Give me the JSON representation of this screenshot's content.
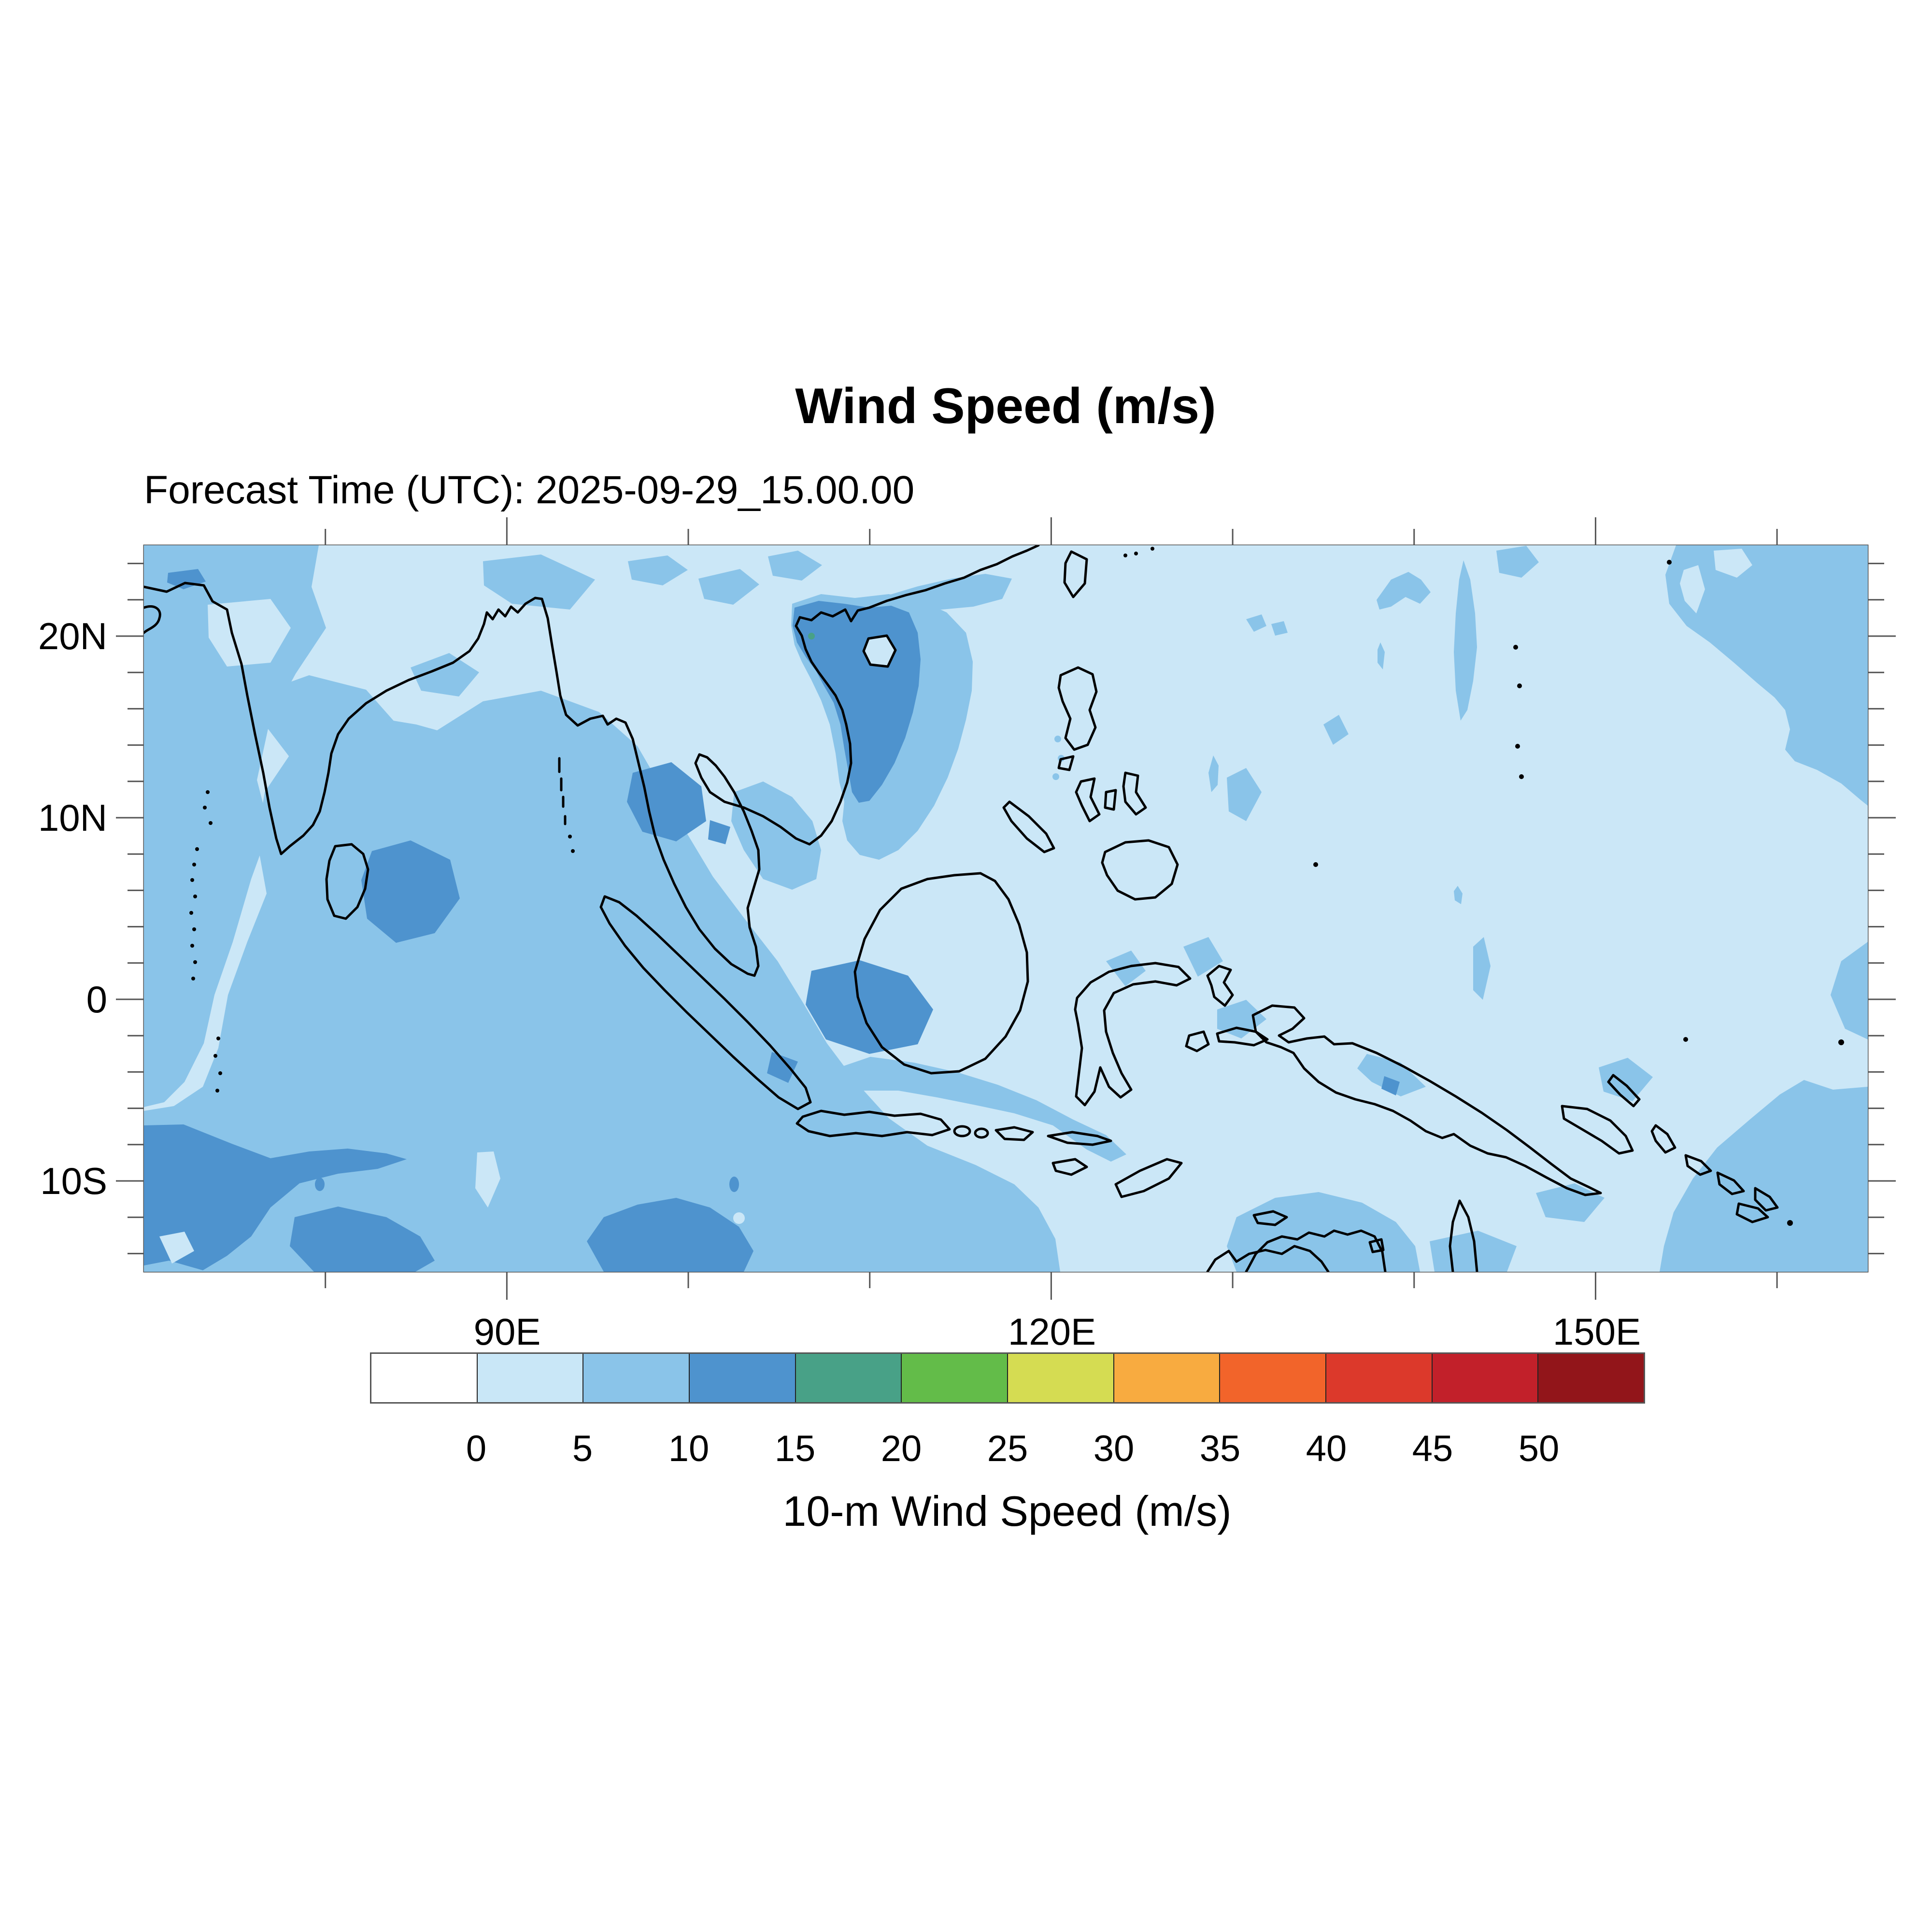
{
  "title": "Wind Speed (m/s)",
  "subtitle": "Forecast Time (UTC): 2025-09-29_15.00.00",
  "map": {
    "y_tick_labels": [
      "20N",
      "10N",
      "0",
      "10S"
    ],
    "x_tick_labels": [
      "90E",
      "120E",
      "150E"
    ]
  },
  "colorbar": {
    "title": "10-m Wind Speed (m/s)",
    "tick_labels": [
      "0",
      "5",
      "10",
      "15",
      "20",
      "25",
      "30",
      "35",
      "40",
      "45",
      "50"
    ],
    "colors": [
      "#ffffff",
      "#c9e7f7",
      "#8ac4e9",
      "#4e93ce",
      "#48a187",
      "#63bc49",
      "#d5dc52",
      "#f8ab40",
      "#f2642a",
      "#dc392b",
      "#c2202a",
      "#92151a"
    ]
  },
  "chart_data": {
    "type": "heatmap",
    "title": "Wind Speed (m/s)",
    "subtitle": "Forecast Time (UTC): 2025-09-29_15.00.00",
    "colorbar_label": "10-m Wind Speed (m/s)",
    "contour_levels_mps": [
      0,
      5,
      10,
      15,
      20,
      25,
      30,
      35,
      40,
      45,
      50
    ],
    "palette": [
      "#ffffff",
      "#c9e7f7",
      "#8ac4e9",
      "#4e93ce",
      "#48a187",
      "#63bc49",
      "#d5dc52",
      "#f8ab40",
      "#f2642a",
      "#dc392b",
      "#c2202a",
      "#92151a"
    ],
    "x_axis": {
      "tick_labels": [
        "90E",
        "120E",
        "150E"
      ],
      "minor_tick_every_deg": 10
    },
    "y_axis": {
      "tick_labels": [
        "20N",
        "10N",
        "0",
        "10S"
      ],
      "minor_tick_every_deg": 2
    },
    "legend_position": "bottom",
    "visible_bands_mps": [
      "0-5",
      "5-10",
      "10-15",
      "15-20"
    ],
    "grid": false
  }
}
